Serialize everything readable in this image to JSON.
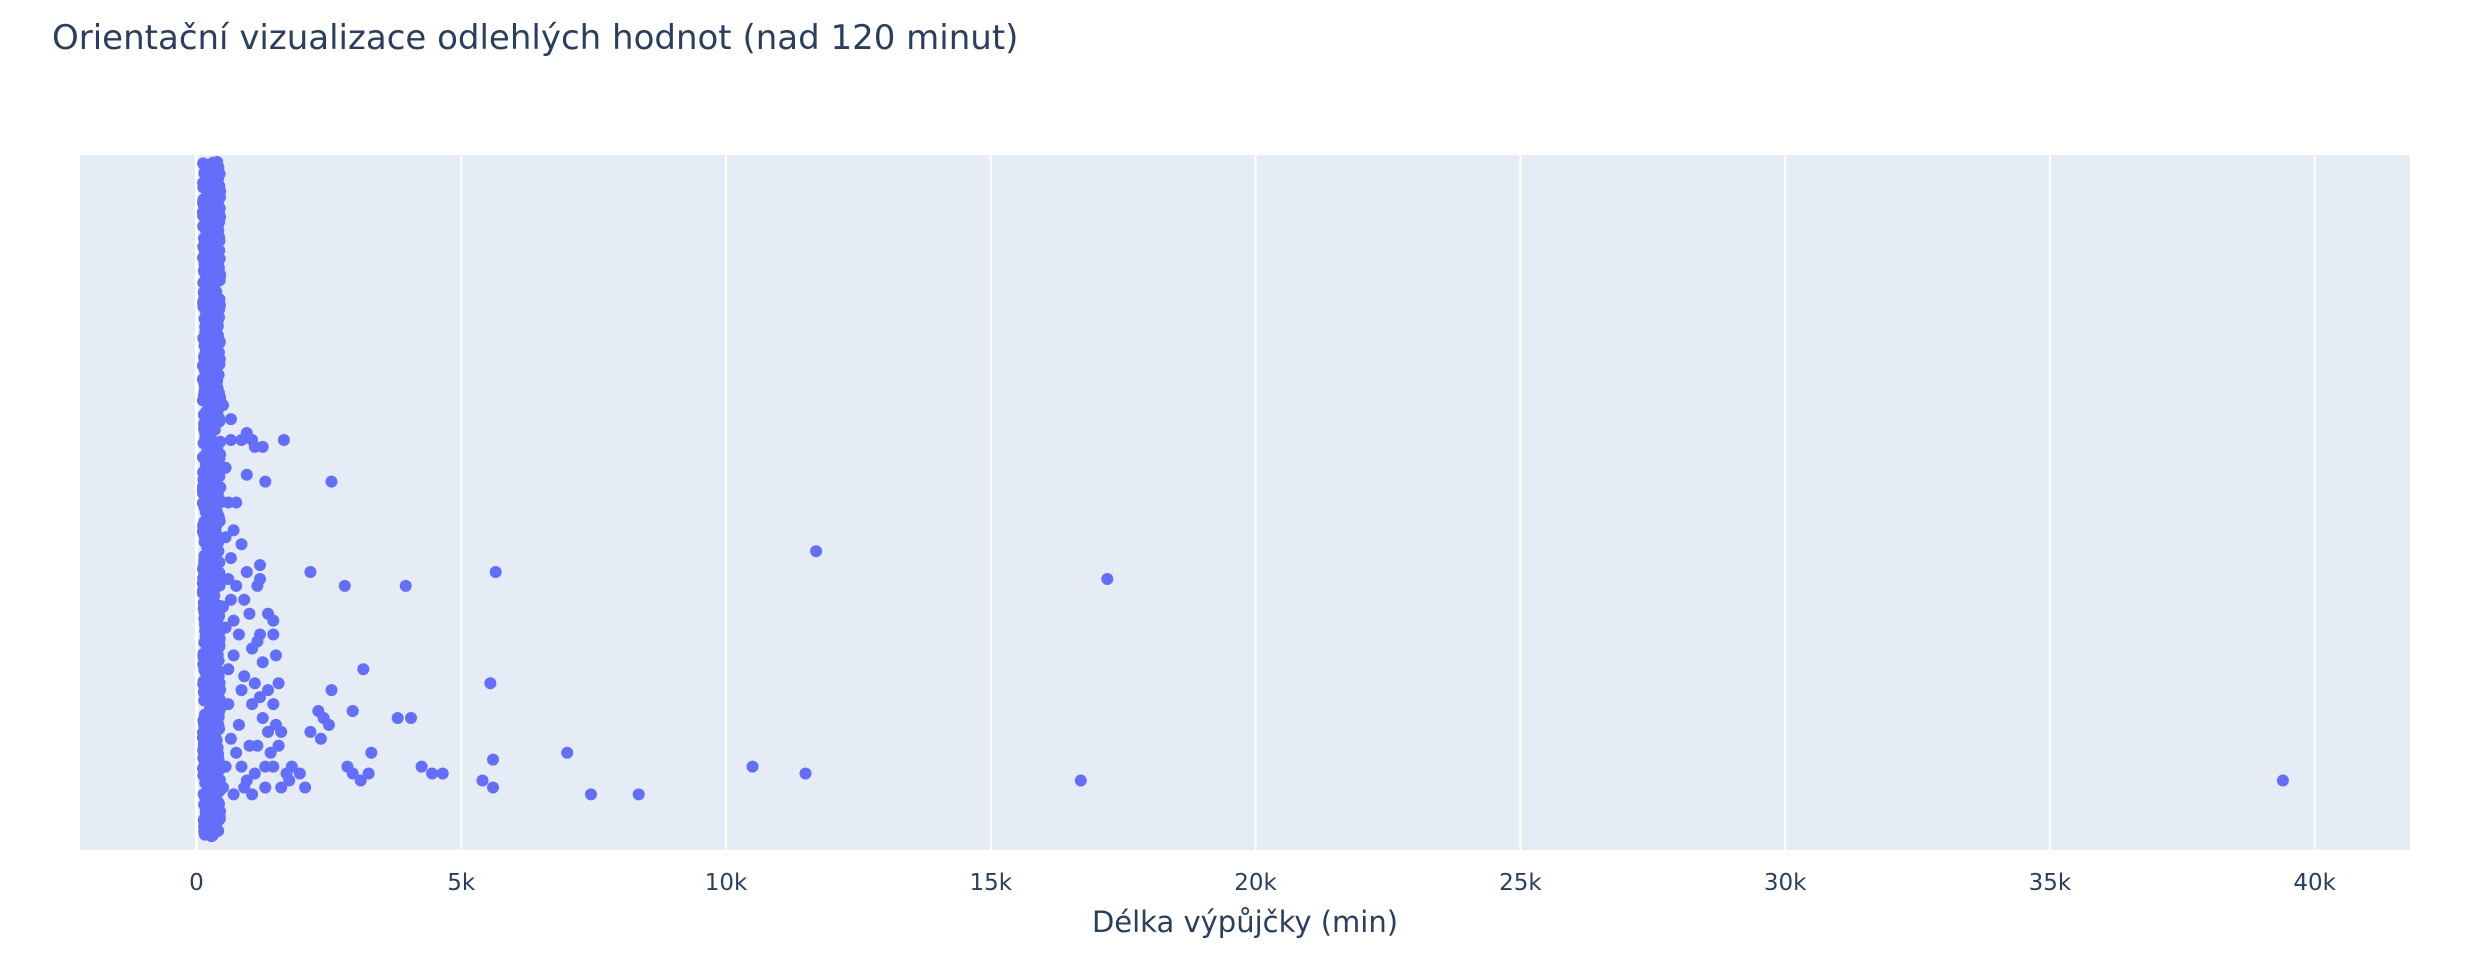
{
  "chart_data": {
    "type": "scatter",
    "title": "Orientační vizualizace odlehlých hodnot (nad 120 minut)",
    "xlabel": "Délka výpůjčky (min)",
    "ylabel": "",
    "xlim": [
      -2200,
      41800
    ],
    "ylim": [
      0,
      1
    ],
    "grid": true,
    "legend": "none",
    "colors": {
      "marker": "#636efa",
      "plot_bg": "#e5ecf6",
      "grid": "#ffffff",
      "text": "#2a3f5f"
    },
    "x_ticks": [
      {
        "value": 0,
        "label": "0"
      },
      {
        "value": 5000,
        "label": "5k"
      },
      {
        "value": 10000,
        "label": "10k"
      },
      {
        "value": 15000,
        "label": "15k"
      },
      {
        "value": 20000,
        "label": "20k"
      },
      {
        "value": 25000,
        "label": "25k"
      },
      {
        "value": 30000,
        "label": "30k"
      },
      {
        "value": 35000,
        "label": "35k"
      },
      {
        "value": 40000,
        "label": "40k"
      }
    ],
    "note_dense_band": {
      "description": "very dense cluster of points spanning entire vertical range",
      "x_min": 120,
      "x_max": 450,
      "y_min": 0.02,
      "y_max": 0.99
    },
    "points": [
      [
        39400,
        0.1
      ],
      [
        17200,
        0.39
      ],
      [
        11700,
        0.43
      ],
      [
        16700,
        0.1
      ],
      [
        11500,
        0.11
      ],
      [
        10500,
        0.12
      ],
      [
        8350,
        0.08
      ],
      [
        7450,
        0.08
      ],
      [
        7000,
        0.14
      ],
      [
        5600,
        0.13
      ],
      [
        5650,
        0.4
      ],
      [
        5550,
        0.24
      ],
      [
        5600,
        0.09
      ],
      [
        5400,
        0.1
      ],
      [
        4650,
        0.11
      ],
      [
        4450,
        0.11
      ],
      [
        4250,
        0.12
      ],
      [
        4050,
        0.19
      ],
      [
        3800,
        0.19
      ],
      [
        3950,
        0.38
      ],
      [
        3150,
        0.26
      ],
      [
        3300,
        0.14
      ],
      [
        3250,
        0.11
      ],
      [
        3100,
        0.1
      ],
      [
        2950,
        0.11
      ],
      [
        2850,
        0.12
      ],
      [
        2950,
        0.2
      ],
      [
        2800,
        0.38
      ],
      [
        2550,
        0.53
      ],
      [
        2550,
        0.23
      ],
      [
        2400,
        0.19
      ],
      [
        2500,
        0.18
      ],
      [
        2300,
        0.2
      ],
      [
        2350,
        0.16
      ],
      [
        2150,
        0.17
      ],
      [
        2150,
        0.4
      ],
      [
        2050,
        0.09
      ],
      [
        1950,
        0.11
      ],
      [
        1800,
        0.12
      ],
      [
        1750,
        0.1
      ],
      [
        1700,
        0.11
      ],
      [
        1650,
        0.59
      ],
      [
        1550,
        0.15
      ],
      [
        1450,
        0.12
      ],
      [
        1500,
        0.18
      ],
      [
        1450,
        0.33
      ],
      [
        1500,
        0.28
      ],
      [
        1450,
        0.31
      ],
      [
        1350,
        0.34
      ],
      [
        1300,
        0.53
      ],
      [
        1250,
        0.58
      ],
      [
        1200,
        0.39
      ],
      [
        1150,
        0.38
      ],
      [
        1200,
        0.41
      ],
      [
        1050,
        0.59
      ],
      [
        1100,
        0.58
      ],
      [
        950,
        0.6
      ],
      [
        950,
        0.54
      ],
      [
        850,
        0.59
      ],
      [
        650,
        0.59
      ],
      [
        750,
        0.5
      ],
      [
        700,
        0.46
      ],
      [
        650,
        0.62
      ],
      [
        1050,
        0.29
      ],
      [
        1150,
        0.3
      ],
      [
        900,
        0.36
      ],
      [
        850,
        0.23
      ],
      [
        1050,
        0.21
      ],
      [
        1150,
        0.15
      ],
      [
        1250,
        0.19
      ],
      [
        1350,
        0.17
      ],
      [
        1450,
        0.21
      ],
      [
        1300,
        0.09
      ],
      [
        1050,
        0.08
      ],
      [
        950,
        0.1
      ],
      [
        850,
        0.12
      ],
      [
        750,
        0.14
      ],
      [
        650,
        0.16
      ],
      [
        600,
        0.26
      ],
      [
        700,
        0.28
      ],
      [
        550,
        0.32
      ],
      [
        650,
        0.42
      ],
      [
        550,
        0.45
      ],
      [
        500,
        0.35
      ],
      [
        600,
        0.21
      ],
      [
        500,
        0.09
      ],
      [
        700,
        0.08
      ],
      [
        550,
        0.12
      ],
      [
        800,
        0.18
      ],
      [
        900,
        0.25
      ],
      [
        1000,
        0.34
      ],
      [
        1100,
        0.24
      ],
      [
        1250,
        0.27
      ],
      [
        1300,
        0.12
      ],
      [
        1350,
        0.23
      ],
      [
        750,
        0.38
      ],
      [
        850,
        0.44
      ],
      [
        950,
        0.4
      ],
      [
        600,
        0.5
      ],
      [
        550,
        0.55
      ],
      [
        500,
        0.64
      ],
      [
        650,
        0.36
      ],
      [
        1600,
        0.17
      ],
      [
        1550,
        0.24
      ],
      [
        1400,
        0.14
      ],
      [
        1200,
        0.22
      ],
      [
        1000,
        0.15
      ],
      [
        900,
        0.09
      ],
      [
        800,
        0.31
      ],
      [
        700,
        0.33
      ],
      [
        600,
        0.39
      ],
      [
        1100,
        0.11
      ],
      [
        1200,
        0.31
      ],
      [
        1600,
        0.09
      ]
    ]
  }
}
